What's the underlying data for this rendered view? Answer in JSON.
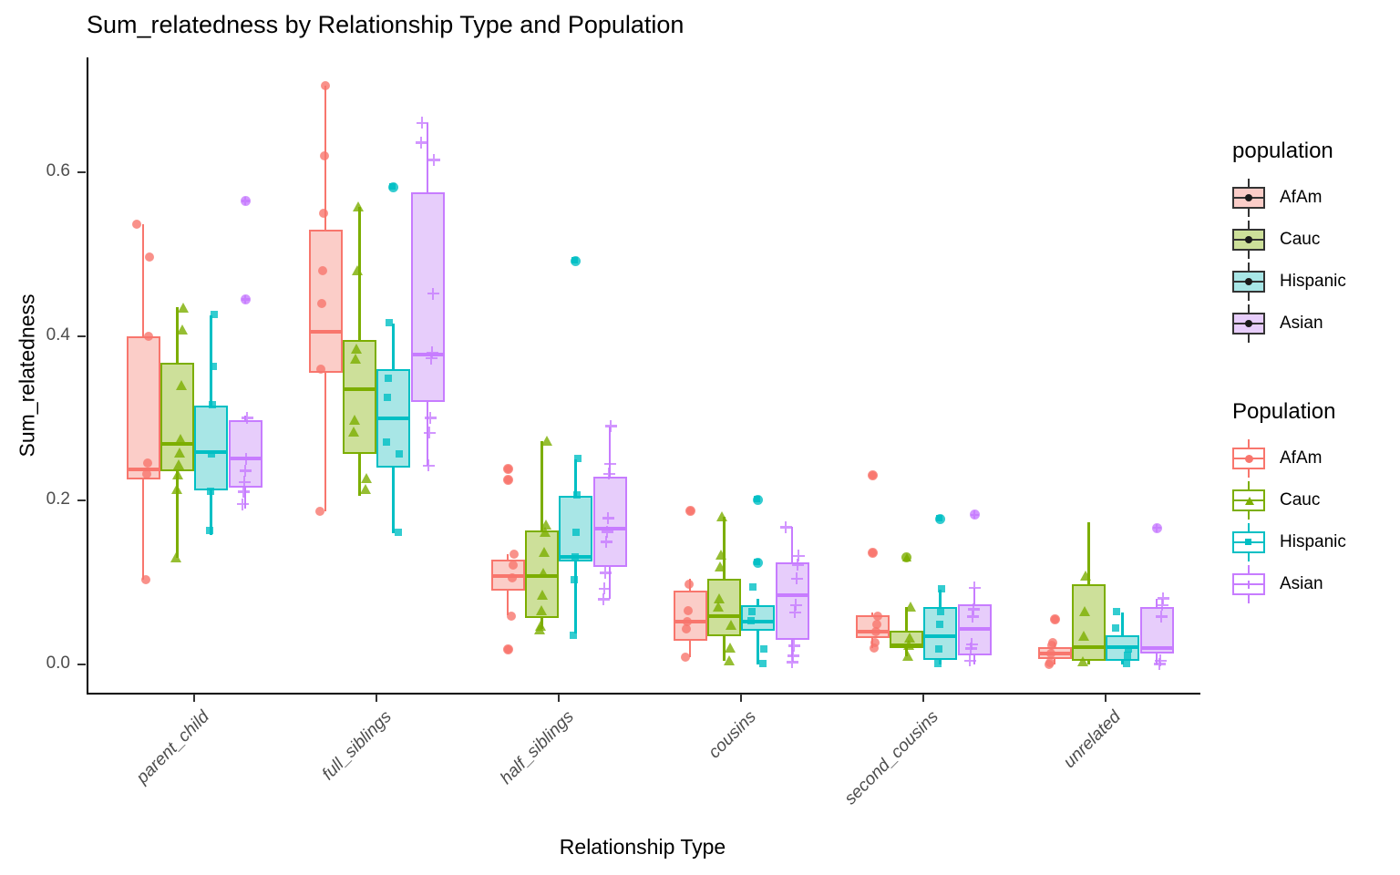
{
  "title": "Sum_relatedness by Relationship Type and Population",
  "axes": {
    "x_label": "Relationship Type",
    "y_label": "Sum_relatedness",
    "y_tick_labels": [
      "0.0",
      "0.2",
      "0.4",
      "0.6"
    ],
    "y_tick_values": [
      0.0,
      0.2,
      0.4,
      0.6
    ]
  },
  "legends": [
    {
      "title": "population",
      "style": "fill",
      "entries": [
        "AfAm",
        "Cauc",
        "Hispanic",
        "Asian"
      ]
    },
    {
      "title": "Population",
      "style": "outline",
      "entries": [
        "AfAm",
        "Cauc",
        "Hispanic",
        "Asian"
      ]
    }
  ],
  "populations": [
    {
      "name": "AfAm",
      "color": "#F8766D",
      "fill": "#FBCDC8",
      "shape": "circle"
    },
    {
      "name": "Cauc",
      "color": "#7CAE00",
      "fill": "#CDE09A",
      "shape": "triangle"
    },
    {
      "name": "Hispanic",
      "color": "#00BFC4",
      "fill": "#A8E6E6",
      "shape": "square"
    },
    {
      "name": "Asian",
      "color": "#C77CFF",
      "fill": "#E7CDFB",
      "shape": "plus"
    }
  ],
  "chart_data": {
    "type": "boxplot",
    "title": "Sum_relatedness by Relationship Type and Population",
    "xlabel": "Relationship Type",
    "ylabel": "Sum_relatedness",
    "legend_position": "right",
    "grid": false,
    "ylim": [
      -0.035,
      0.74
    ],
    "categories": [
      "parent_child",
      "full_siblings",
      "half_siblings",
      "cousins",
      "second_cousins",
      "unrelated"
    ],
    "series_names": [
      "AfAm",
      "Cauc",
      "Hispanic",
      "Asian"
    ],
    "groups": [
      {
        "category": "parent_child",
        "boxes": [
          {
            "population": "AfAm",
            "low": 0.103,
            "q1": 0.225,
            "med": 0.237,
            "q3": 0.4,
            "high": 0.537,
            "outliers": [],
            "points": [
              0.537,
              0.497,
              0.4,
              0.245,
              0.232,
              0.103
            ]
          },
          {
            "population": "Cauc",
            "low": 0.13,
            "q1": 0.235,
            "med": 0.268,
            "q3": 0.368,
            "high": 0.435,
            "outliers": [],
            "points": [
              0.435,
              0.408,
              0.34,
              0.275,
              0.258,
              0.244,
              0.231,
              0.213,
              0.13
            ]
          },
          {
            "population": "Hispanic",
            "low": 0.157,
            "q1": 0.212,
            "med": 0.258,
            "q3": 0.315,
            "high": 0.425,
            "outliers": [],
            "points": [
              0.425,
              0.362,
              0.315,
              0.255,
              0.21,
              0.162
            ]
          },
          {
            "population": "Asian",
            "low": 0.19,
            "q1": 0.215,
            "med": 0.251,
            "q3": 0.298,
            "high": 0.303,
            "outliers": [
              0.565,
              0.445
            ],
            "points": [
              0.3,
              0.25,
              0.236,
              0.222,
              0.21,
              0.195
            ]
          }
        ]
      },
      {
        "category": "full_siblings",
        "boxes": [
          {
            "population": "AfAm",
            "low": 0.186,
            "q1": 0.355,
            "med": 0.405,
            "q3": 0.53,
            "high": 0.705,
            "outliers": [],
            "points": [
              0.705,
              0.62,
              0.55,
              0.48,
              0.44,
              0.36,
              0.186
            ]
          },
          {
            "population": "Cauc",
            "low": 0.205,
            "q1": 0.256,
            "med": 0.335,
            "q3": 0.395,
            "high": 0.558,
            "outliers": [],
            "points": [
              0.558,
              0.48,
              0.385,
              0.373,
              0.298,
              0.284,
              0.227,
              0.213
            ]
          },
          {
            "population": "Hispanic",
            "low": 0.16,
            "q1": 0.24,
            "med": 0.3,
            "q3": 0.36,
            "high": 0.415,
            "outliers": [
              0.582
            ],
            "points": [
              0.415,
              0.348,
              0.324,
              0.27,
              0.255,
              0.16
            ]
          },
          {
            "population": "Asian",
            "low": 0.242,
            "q1": 0.32,
            "med": 0.378,
            "q3": 0.575,
            "high": 0.66,
            "outliers": [],
            "points": [
              0.66,
              0.636,
              0.615,
              0.452,
              0.38,
              0.373,
              0.3,
              0.282,
              0.242
            ]
          }
        ]
      },
      {
        "category": "half_siblings",
        "boxes": [
          {
            "population": "AfAm",
            "low": 0.06,
            "q1": 0.09,
            "med": 0.107,
            "q3": 0.127,
            "high": 0.134,
            "outliers": [
              0.238,
              0.225,
              0.018
            ],
            "points": [
              0.134,
              0.121,
              0.105,
              0.058
            ]
          },
          {
            "population": "Cauc",
            "low": 0.043,
            "q1": 0.056,
            "med": 0.107,
            "q3": 0.163,
            "high": 0.272,
            "outliers": [],
            "points": [
              0.272,
              0.17,
              0.161,
              0.137,
              0.111,
              0.085,
              0.066,
              0.047,
              0.042
            ]
          },
          {
            "population": "Hispanic",
            "low": 0.037,
            "q1": 0.125,
            "med": 0.131,
            "q3": 0.205,
            "high": 0.25,
            "outliers": [
              0.492
            ],
            "points": [
              0.25,
              0.205,
              0.16,
              0.13,
              0.102,
              0.034
            ]
          },
          {
            "population": "Asian",
            "low": 0.079,
            "q1": 0.118,
            "med": 0.165,
            "q3": 0.228,
            "high": 0.29,
            "outliers": [],
            "points": [
              0.29,
              0.244,
              0.232,
              0.178,
              0.161,
              0.149,
              0.111,
              0.092,
              0.079
            ]
          }
        ]
      },
      {
        "category": "cousins",
        "boxes": [
          {
            "population": "AfAm",
            "low": 0.008,
            "q1": 0.028,
            "med": 0.052,
            "q3": 0.089,
            "high": 0.104,
            "outliers": [
              0.187
            ],
            "points": [
              0.097,
              0.065,
              0.052,
              0.043,
              0.008
            ]
          },
          {
            "population": "Cauc",
            "low": 0.004,
            "q1": 0.034,
            "med": 0.058,
            "q3": 0.104,
            "high": 0.18,
            "outliers": [],
            "points": [
              0.18,
              0.134,
              0.119,
              0.08,
              0.07,
              0.048,
              0.02,
              0.004
            ]
          },
          {
            "population": "Hispanic",
            "low": 0.0,
            "q1": 0.041,
            "med": 0.052,
            "q3": 0.072,
            "high": 0.08,
            "outliers": [
              0.2,
              0.124
            ],
            "points": [
              0.093,
              0.063,
              0.052,
              0.017,
              0.0
            ]
          },
          {
            "population": "Asian",
            "low": 0.01,
            "q1": 0.03,
            "med": 0.084,
            "q3": 0.124,
            "high": 0.167,
            "outliers": [],
            "points": [
              0.167,
              0.132,
              0.121,
              0.104,
              0.072,
              0.063,
              0.022,
              0.01,
              0.002
            ]
          }
        ]
      },
      {
        "category": "second_cousins",
        "boxes": [
          {
            "population": "AfAm",
            "low": 0.02,
            "q1": 0.032,
            "med": 0.039,
            "q3": 0.06,
            "high": 0.063,
            "outliers": [
              0.23,
              0.136
            ],
            "points": [
              0.058,
              0.048,
              0.039,
              0.026,
              0.02
            ]
          },
          {
            "population": "Cauc",
            "low": 0.01,
            "q1": 0.019,
            "med": 0.023,
            "q3": 0.041,
            "high": 0.07,
            "outliers": [
              0.13
            ],
            "points": [
              0.07,
              0.032,
              0.023,
              0.01
            ]
          },
          {
            "population": "Hispanic",
            "low": 0.0,
            "q1": 0.005,
            "med": 0.034,
            "q3": 0.069,
            "high": 0.091,
            "outliers": [
              0.177
            ],
            "points": [
              0.091,
              0.063,
              0.047,
              0.017,
              0.0
            ]
          },
          {
            "population": "Asian",
            "low": 0.0,
            "q1": 0.011,
            "med": 0.043,
            "q3": 0.073,
            "high": 0.093,
            "outliers": [
              0.182
            ],
            "points": [
              0.093,
              0.067,
              0.058,
              0.024,
              0.019,
              0.004
            ]
          }
        ]
      },
      {
        "category": "unrelated",
        "boxes": [
          {
            "population": "AfAm",
            "low": 0.0,
            "q1": 0.006,
            "med": 0.013,
            "q3": 0.021,
            "high": 0.026,
            "outliers": [
              0.054
            ],
            "points": [
              0.026,
              0.023,
              0.013,
              0.002,
              0.0
            ]
          },
          {
            "population": "Cauc",
            "low": 0.0,
            "q1": 0.004,
            "med": 0.021,
            "q3": 0.097,
            "high": 0.173,
            "outliers": [],
            "points": [
              0.108,
              0.065,
              0.034,
              0.003
            ]
          },
          {
            "population": "Hispanic",
            "low": 0.0,
            "q1": 0.004,
            "med": 0.021,
            "q3": 0.035,
            "high": 0.063,
            "outliers": [],
            "points": [
              0.063,
              0.043,
              0.017,
              0.01,
              0.0
            ]
          },
          {
            "population": "Asian",
            "low": 0.0,
            "q1": 0.013,
            "med": 0.019,
            "q3": 0.069,
            "high": 0.08,
            "outliers": [
              0.166
            ],
            "points": [
              0.08,
              0.072,
              0.058,
              0.004,
              0.0
            ]
          }
        ]
      }
    ]
  }
}
